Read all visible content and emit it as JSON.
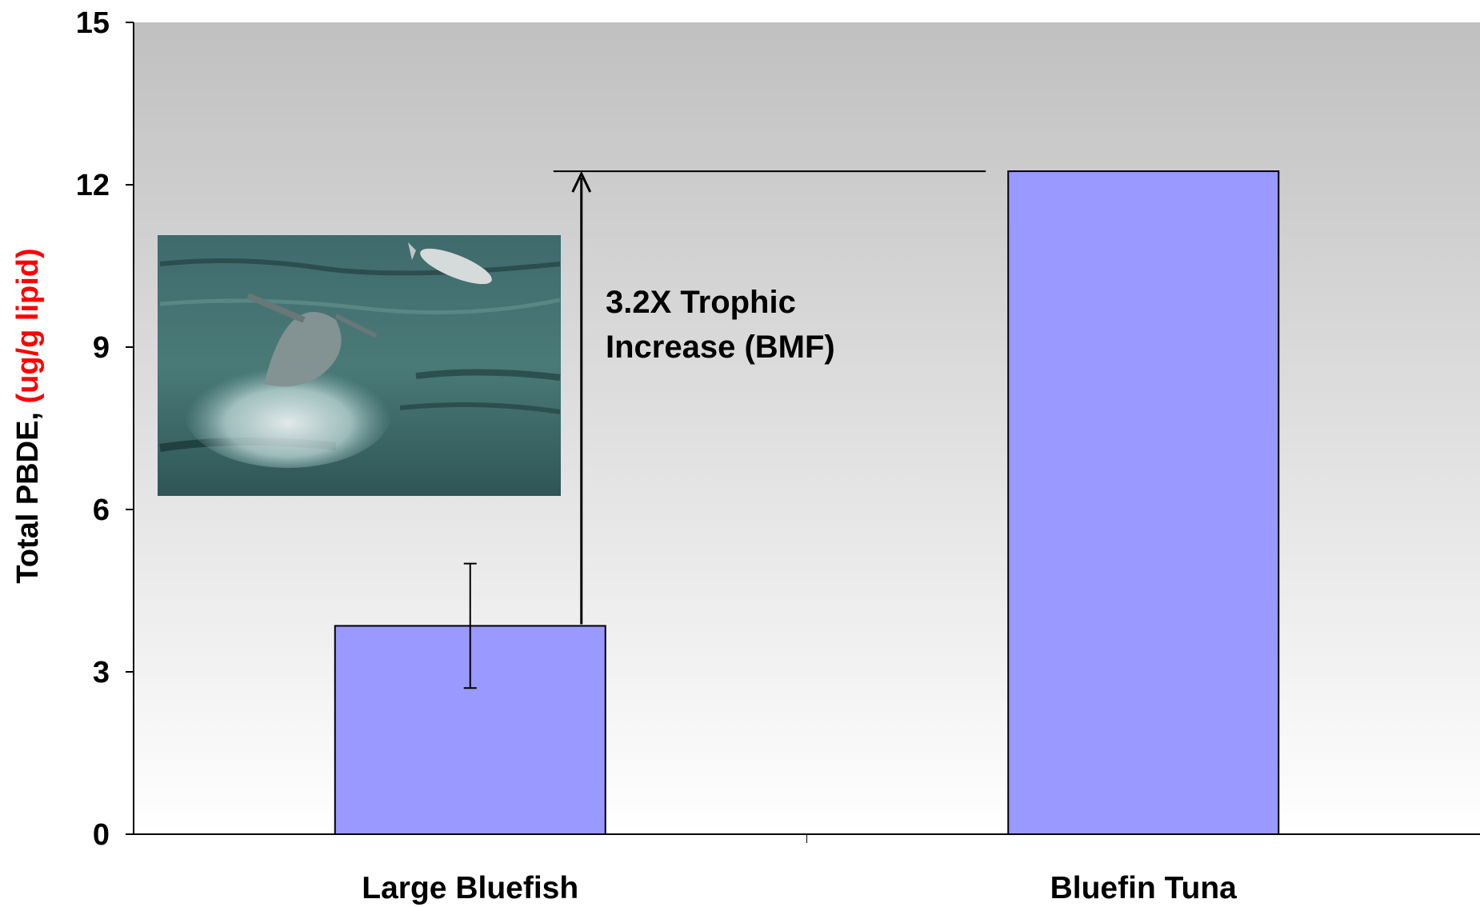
{
  "chart_data": {
    "type": "bar",
    "categories": [
      "Large Bluefish",
      "Bluefin Tuna"
    ],
    "values": [
      3.85,
      12.25
    ],
    "error_bars": [
      {
        "category": "Large Bluefish",
        "low": 2.7,
        "high": 5.0
      },
      null
    ],
    "ylabel_parts": [
      "Total PBDE, ",
      "(ug/g lipid)"
    ],
    "ylim": [
      0,
      15
    ],
    "yticks": [
      0,
      3,
      6,
      9,
      12,
      15
    ],
    "xlabel": "",
    "grid": false,
    "legend": "none",
    "annotation": {
      "lines": [
        "3.2X Trophic",
        "Increase (BMF)"
      ],
      "from_value": 3.85,
      "to_value": 12.25
    },
    "photo_description": "inset-photo-bluefin-tuna-leaping-after-bluefish",
    "colors": {
      "bar": "#9999ff",
      "bar_edge": "#000000",
      "ylabel_unit": "#ff0000",
      "plot_bg_top": "#c0c0c0",
      "plot_bg_bottom": "#ffffff"
    }
  }
}
